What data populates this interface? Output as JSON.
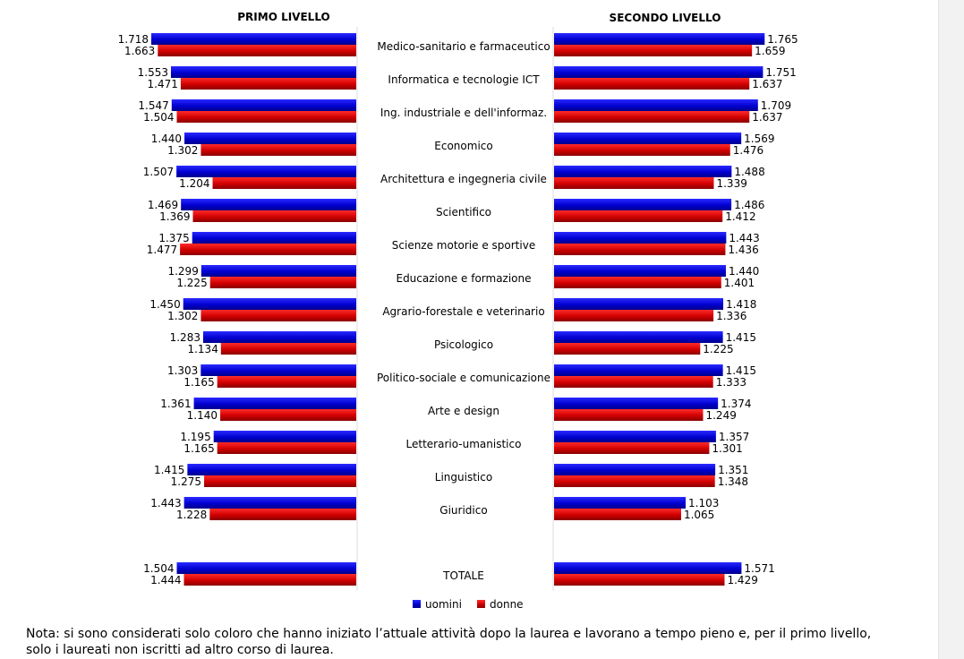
{
  "chart_data": {
    "type": "bar",
    "orientation": "horizontal",
    "layout": "back-to-back",
    "panels": [
      {
        "title": "PRIMO LIVELLO",
        "direction": "leftward"
      },
      {
        "title": "SECONDO LIVELLO",
        "direction": "rightward"
      }
    ],
    "categories": [
      "Medico-sanitario e farmaceutico",
      "Informatica e tecnologie ICT",
      "Ing. industriale e dell'informaz.",
      "Economico",
      "Architettura e ingegneria civile",
      "Scientifico",
      "Scienze motorie e sportive",
      "Educazione e formazione",
      "Agrario-forestale e veterinario",
      "Psicologico",
      "Politico-sociale e comunicazione",
      "Arte e design",
      "Letterario-umanistico",
      "Linguistico",
      "Giuridico",
      "TOTALE"
    ],
    "series": [
      {
        "name": "uomini",
        "color": "#0000cc",
        "primo": [
          1718,
          1553,
          1547,
          1440,
          1507,
          1469,
          1375,
          1299,
          1450,
          1283,
          1303,
          1361,
          1195,
          1415,
          1443,
          1504
        ],
        "secondo": [
          1765,
          1751,
          1709,
          1569,
          1488,
          1486,
          1443,
          1440,
          1418,
          1415,
          1415,
          1374,
          1357,
          1351,
          1103,
          1571
        ],
        "primo_labels": [
          "1.718",
          "1.553",
          "1.547",
          "1.440",
          "1.507",
          "1.469",
          "1.375",
          "1.299",
          "1.450",
          "1.283",
          "1.303",
          "1.361",
          "1.195",
          "1.415",
          "1.443",
          "1.504"
        ],
        "secondo_labels": [
          "1.765",
          "1.751",
          "1.709",
          "1.569",
          "1.488",
          "1.486",
          "1.443",
          "1.440",
          "1.418",
          "1.415",
          "1.415",
          "1.374",
          "1.357",
          "1.351",
          "1.103",
          "1.571"
        ]
      },
      {
        "name": "donne",
        "color": "#cc0000",
        "primo": [
          1663,
          1471,
          1504,
          1302,
          1204,
          1369,
          1477,
          1225,
          1302,
          1134,
          1165,
          1140,
          1165,
          1275,
          1228,
          1444
        ],
        "secondo": [
          1659,
          1637,
          1637,
          1476,
          1339,
          1412,
          1436,
          1401,
          1336,
          1225,
          1333,
          1249,
          1301,
          1348,
          1065,
          1429
        ],
        "primo_labels": [
          "1.663",
          "1.471",
          "1.504",
          "1.302",
          "1.204",
          "1.369",
          "1.477",
          "1.225",
          "1.302",
          "1.134",
          "1.165",
          "1.140",
          "1.165",
          "1.275",
          "1.228",
          "1.444"
        ],
        "secondo_labels": [
          "1.659",
          "1.637",
          "1.637",
          "1.476",
          "1.339",
          "1.412",
          "1.436",
          "1.401",
          "1.336",
          "1.225",
          "1.333",
          "1.249",
          "1.301",
          "1.348",
          "1.065",
          "1.429"
        ]
      }
    ],
    "legend": {
      "position": "bottom-center",
      "items": [
        "uomini",
        "donne"
      ]
    }
  },
  "note": "Nota: si sono considerati solo coloro che hanno iniziato l’attuale attività dopo la laurea e lavorano a tempo pieno e, per il primo livello, solo i laureati non iscritti ad altro corso di laurea."
}
